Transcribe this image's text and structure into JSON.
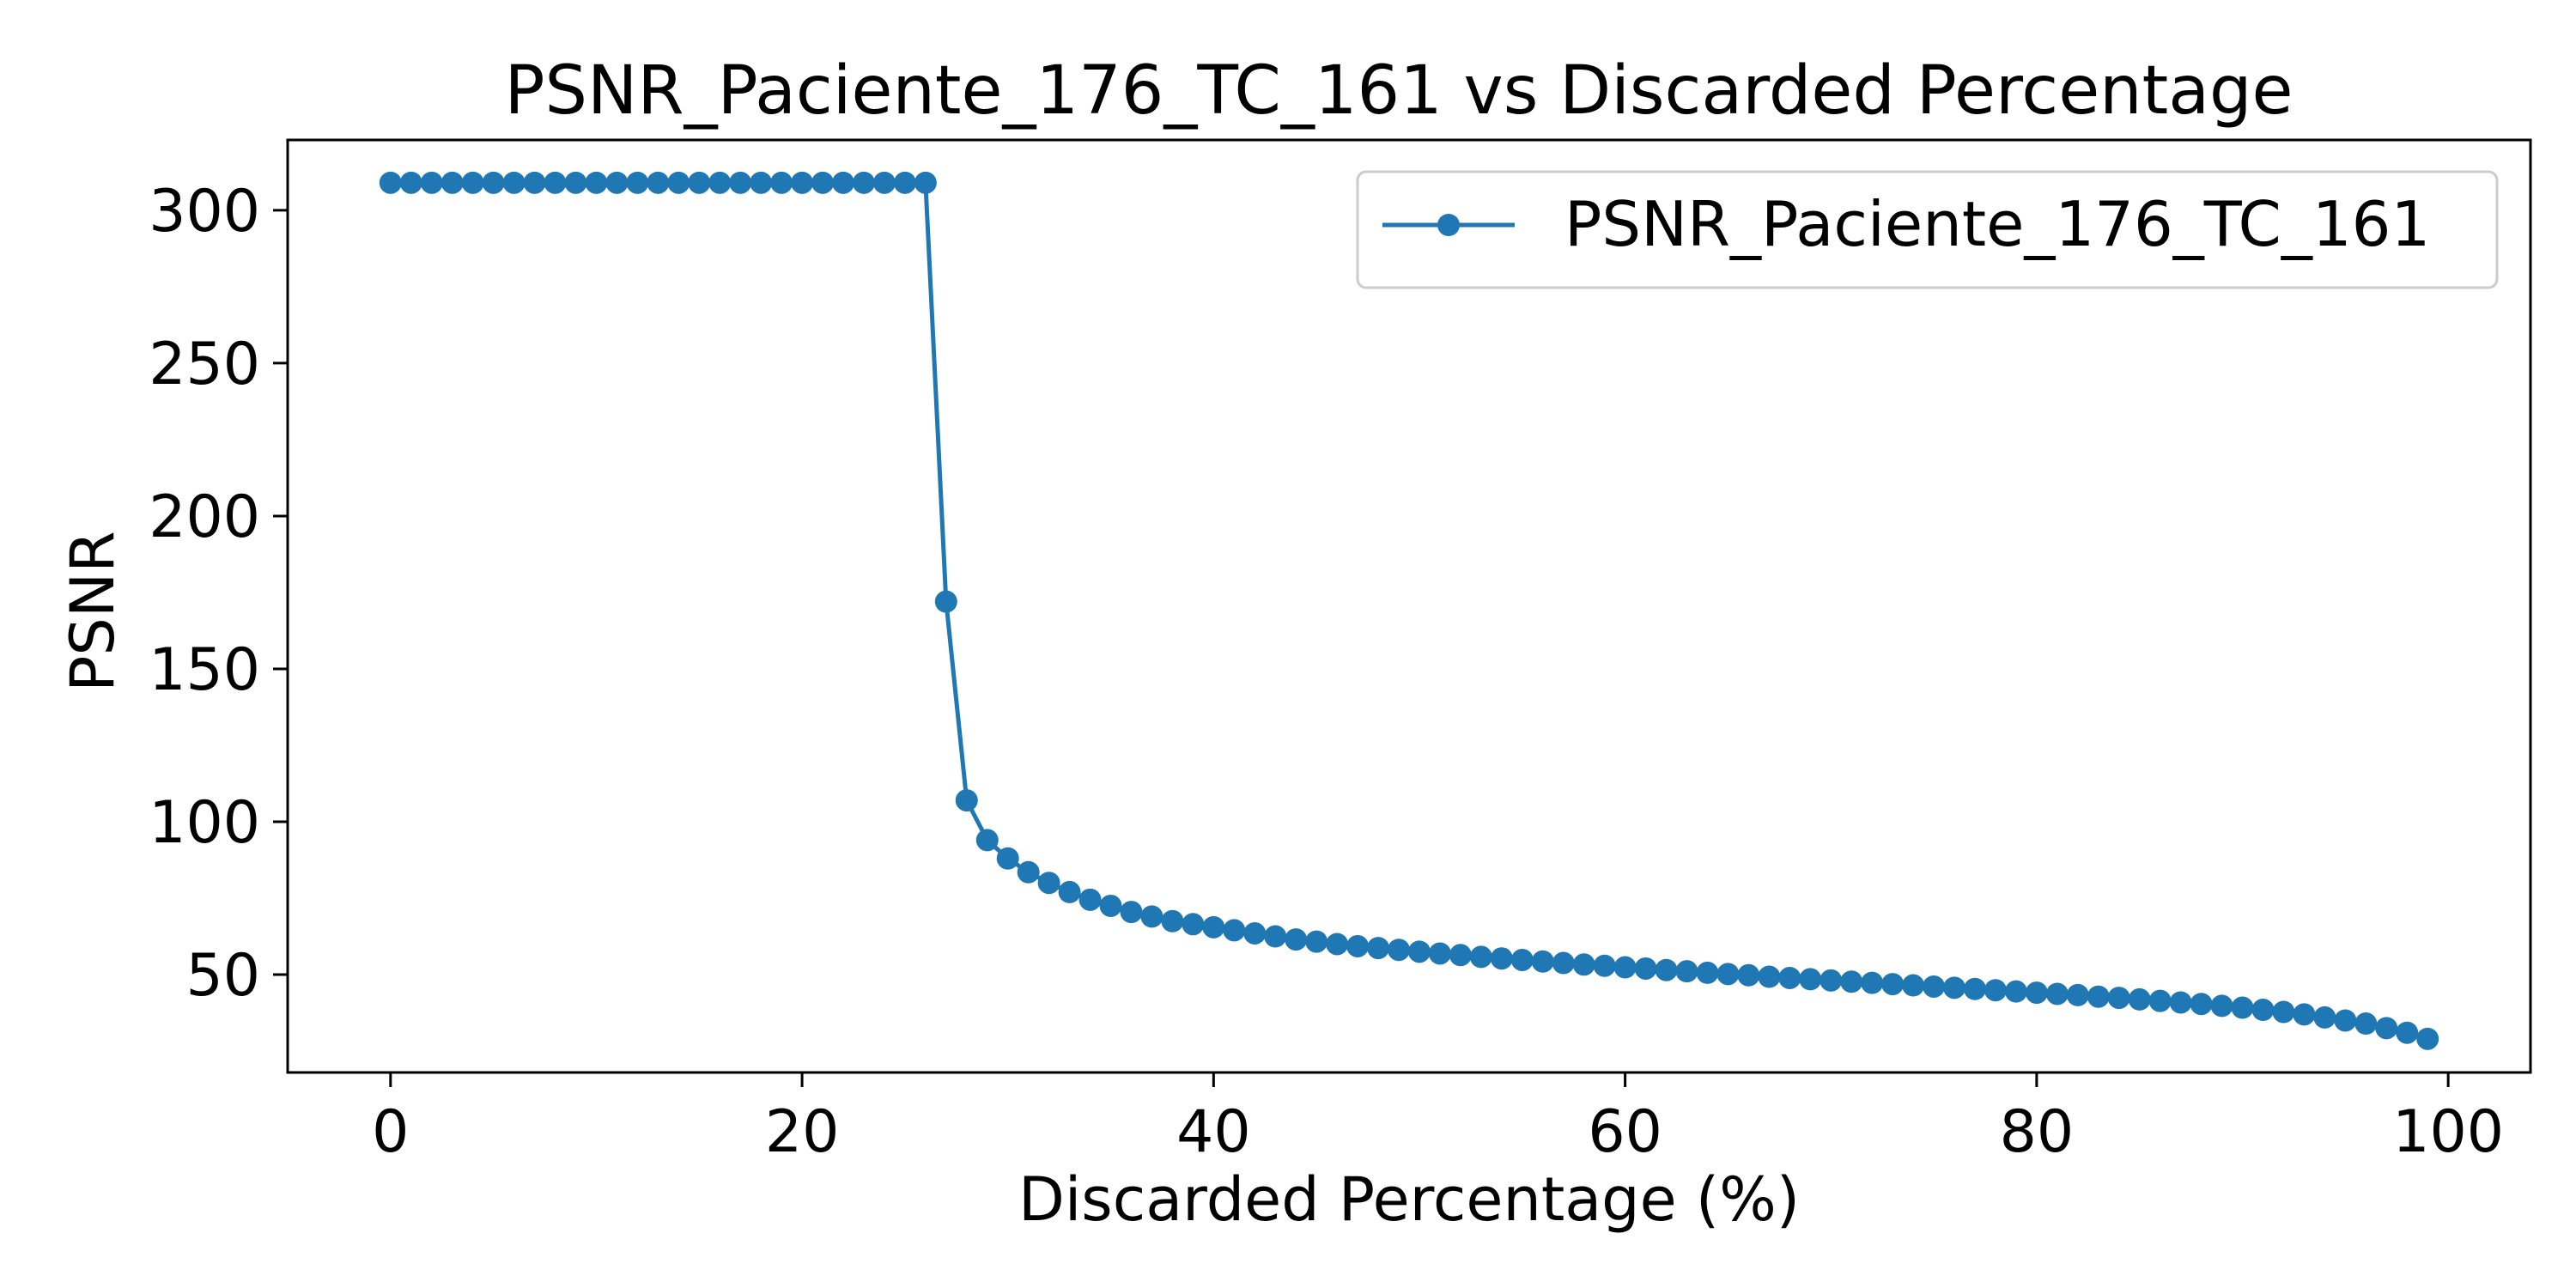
{
  "chart_data": {
    "type": "line",
    "title": "PSNR_Paciente_176_TC_161 vs Discarded Percentage",
    "xlabel": "Discarded Percentage (%)",
    "ylabel": "PSNR",
    "xlim": [
      -5,
      104
    ],
    "ylim": [
      18,
      323
    ],
    "xticks": [
      0,
      20,
      40,
      60,
      80,
      100
    ],
    "yticks": [
      50,
      100,
      150,
      200,
      250,
      300
    ],
    "xtick_labels": [
      "0",
      "20",
      "40",
      "60",
      "80",
      "100"
    ],
    "ytick_labels": [
      "50",
      "100",
      "150",
      "200",
      "250",
      "300"
    ],
    "grid": false,
    "legend_position": "top-right",
    "line_color": "#1f77b4",
    "marker": "circle",
    "series": [
      {
        "name": "PSNR_Paciente_176_TC_161",
        "x": [
          0,
          1,
          2,
          3,
          4,
          5,
          6,
          7,
          8,
          9,
          10,
          11,
          12,
          13,
          14,
          15,
          16,
          17,
          18,
          19,
          20,
          21,
          22,
          23,
          24,
          25,
          26,
          27,
          28,
          29,
          30,
          31,
          32,
          33,
          34,
          35,
          36,
          37,
          38,
          39,
          40,
          41,
          42,
          43,
          44,
          45,
          46,
          47,
          48,
          49,
          50,
          51,
          52,
          53,
          54,
          55,
          56,
          57,
          58,
          59,
          60,
          61,
          62,
          63,
          64,
          65,
          66,
          67,
          68,
          69,
          70,
          71,
          72,
          73,
          74,
          75,
          76,
          77,
          78,
          79,
          80,
          81,
          82,
          83,
          84,
          85,
          86,
          87,
          88,
          89,
          90,
          91,
          92,
          93,
          94,
          95,
          96,
          97,
          98,
          99
        ],
        "y": [
          309,
          309,
          309,
          309,
          309,
          309,
          309,
          309,
          309,
          309,
          309,
          309,
          309,
          309,
          309,
          309,
          309,
          309,
          309,
          309,
          309,
          309,
          309,
          309,
          309,
          309,
          309,
          172,
          107,
          94,
          88,
          83.5,
          80,
          77,
          74.5,
          72.5,
          70.5,
          69,
          67.5,
          66.5,
          65.5,
          64.5,
          63.5,
          62.5,
          61.5,
          60.8,
          60,
          59.3,
          58.7,
          58.1,
          57.5,
          56.9,
          56.4,
          55.8,
          55.3,
          54.8,
          54.3,
          53.8,
          53.3,
          52.9,
          52.4,
          52,
          51.5,
          51.1,
          50.6,
          50.2,
          49.8,
          49.3,
          48.9,
          48.5,
          48.1,
          47.7,
          47.3,
          46.9,
          46.5,
          46.1,
          45.7,
          45.3,
          44.9,
          44.5,
          44.1,
          43.7,
          43.3,
          42.8,
          42.4,
          41.9,
          41.4,
          40.9,
          40.4,
          39.8,
          39.2,
          38.5,
          37.8,
          37,
          36,
          35,
          34,
          32.5,
          31,
          29
        ]
      }
    ]
  }
}
